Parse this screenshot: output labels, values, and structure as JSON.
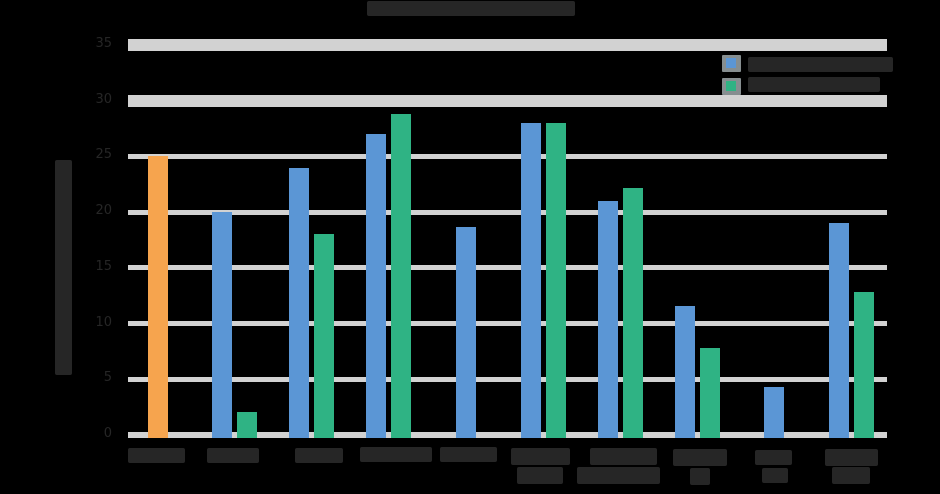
{
  "chart_data": {
    "type": "bar",
    "title": "",
    "title_illegible": true,
    "xlabel": "",
    "ylabel": "",
    "ylabel_illegible": true,
    "y_ticks": [
      "0",
      "5",
      "10",
      "15",
      "20",
      "25",
      "30",
      "35"
    ],
    "ylim": [
      0,
      35
    ],
    "grid": "horizontal",
    "gridline_style": "top two gridlines thick, lower gridlines thin, light gray on black",
    "categories": [
      "C1",
      "C2",
      "C3",
      "C4",
      "C5",
      "C6",
      "C7",
      "C8",
      "C9",
      "C10"
    ],
    "category_labels_illegible": true,
    "series": [
      {
        "name": "blue-series",
        "color": "#5B96D5",
        "legend_label": "",
        "legend_label_illegible": true,
        "values": [
          null,
          20,
          24,
          27,
          18.7,
          28,
          21,
          11.6,
          4.3,
          19
        ]
      },
      {
        "name": "green-series",
        "color": "#2FB384",
        "legend_label": "",
        "legend_label_illegible": true,
        "values": [
          null,
          2.1,
          18,
          28.8,
          null,
          28,
          22.2,
          7.8,
          null,
          12.8
        ]
      }
    ],
    "highlight": {
      "category_index": 0,
      "color": "#F6A44E",
      "value": 25,
      "note": "first category is a single orange bar centered on the category"
    },
    "single_bars_centered": [
      0,
      4,
      8
    ],
    "legend_position": "top-right"
  },
  "colors": {
    "background": "#000000",
    "gridline": "#D2D2D2",
    "text": "#262626",
    "legend_swatch_backing": "#868E90"
  },
  "notes": "All text (title, axis labels, legend labels, category labels) is dark #262626 over a transparent/black background and is illegible in the source pixels; those elements appear as dark redacted blocks."
}
